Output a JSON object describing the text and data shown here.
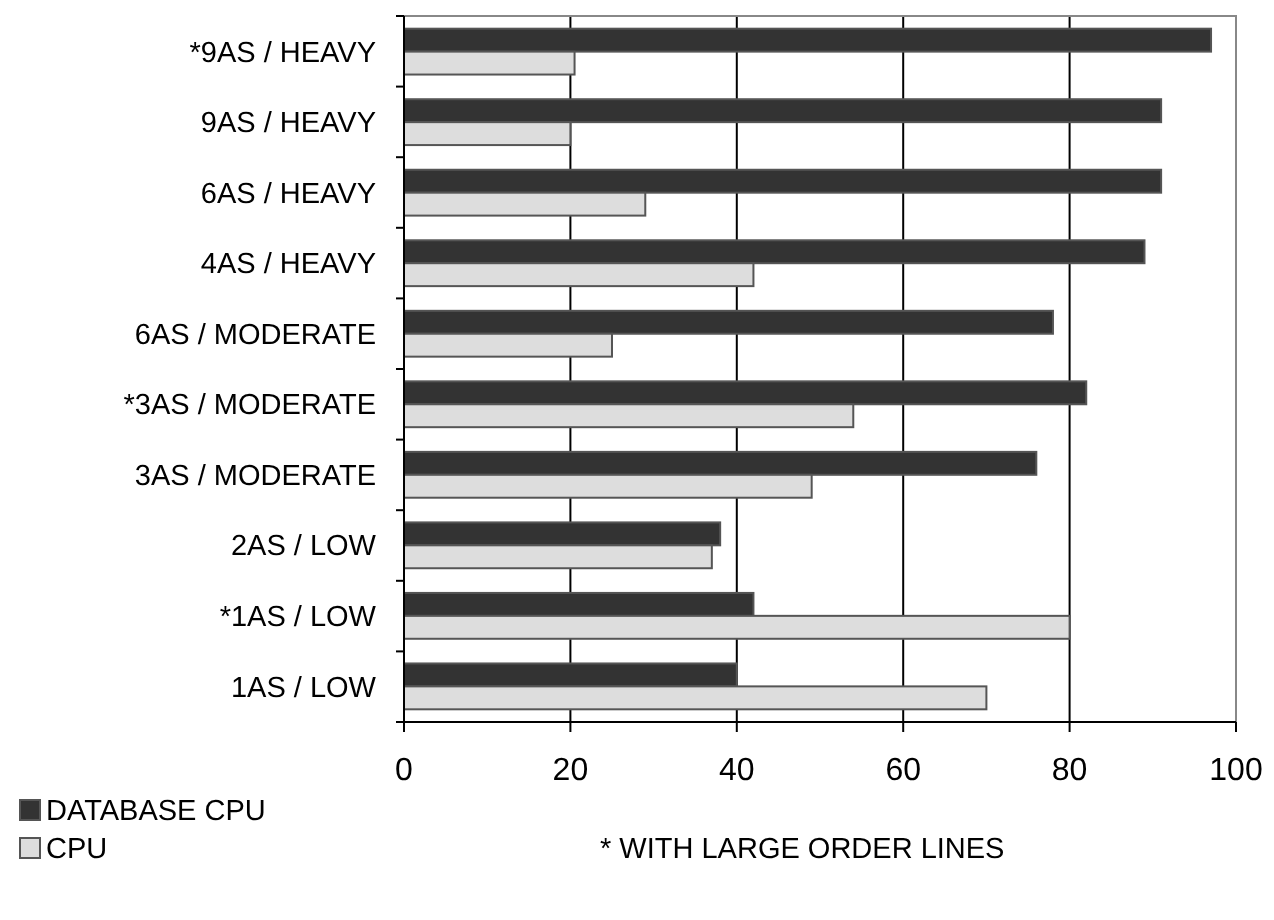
{
  "chart_data": {
    "type": "bar",
    "orientation": "horizontal",
    "categories": [
      "*9AS / HEAVY",
      "9AS / HEAVY",
      "6AS / HEAVY",
      "4AS / HEAVY",
      "6AS / MODERATE",
      "*3AS / MODERATE",
      "3AS / MODERATE",
      "2AS / LOW",
      "*1AS / LOW",
      "1AS / LOW"
    ],
    "series": [
      {
        "name": "DATABASE CPU",
        "color": "#333333",
        "values": [
          97,
          91,
          91,
          89,
          78,
          82,
          76,
          38,
          42,
          40
        ]
      },
      {
        "name": "CPU",
        "color": "#dddddd",
        "values": [
          20.5,
          20,
          29,
          42,
          25,
          54,
          49,
          37,
          80,
          70
        ]
      }
    ],
    "xlim": [
      0,
      100
    ],
    "xticks": [
      0,
      20,
      40,
      60,
      80,
      100
    ],
    "grid": "x",
    "legend": "bottom left",
    "annotations": [
      "* WITH LARGE ORDER LINES"
    ]
  }
}
